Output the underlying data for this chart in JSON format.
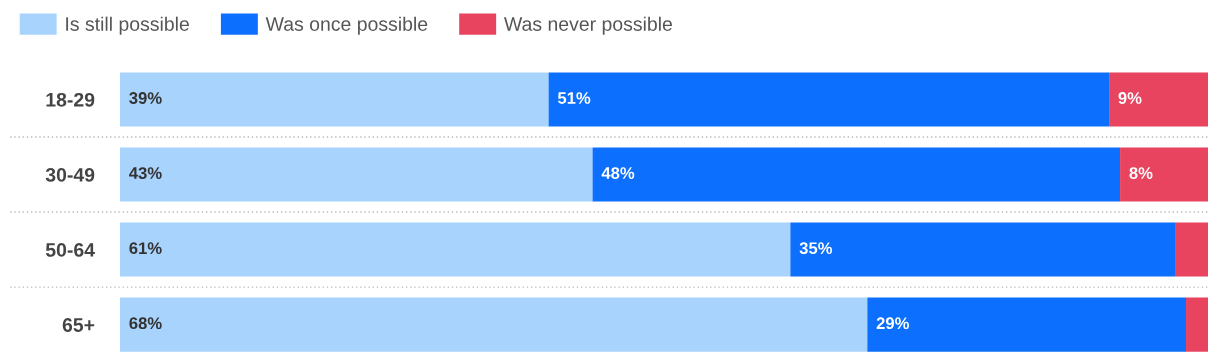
{
  "chart_data": {
    "type": "bar",
    "orientation": "horizontal",
    "stacked": true,
    "categories": [
      "18-29",
      "30-49",
      "50-64",
      "65+"
    ],
    "series": [
      {
        "name": "Is still possible",
        "color": "#a8d3fd",
        "values": [
          39,
          43,
          61,
          68
        ],
        "value_labels": [
          "39%",
          "43%",
          "61%",
          "68%"
        ]
      },
      {
        "name": "Was once possible",
        "color": "#0c6ffd",
        "values": [
          51,
          48,
          35,
          29
        ],
        "value_labels": [
          "51%",
          "48%",
          "35%",
          "29%"
        ]
      },
      {
        "name": "Was never possible",
        "color": "#e8435f",
        "values": [
          9,
          8,
          3,
          2
        ],
        "value_labels": [
          "9%",
          "8%",
          null,
          null
        ]
      }
    ],
    "legend": "top left",
    "grid": "y"
  }
}
